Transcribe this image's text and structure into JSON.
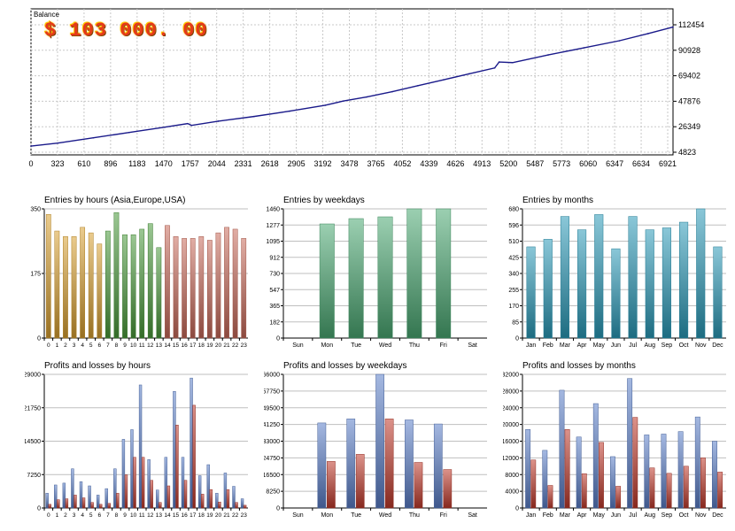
{
  "balance": {
    "title": "Balance",
    "amount": "$ 103 000. 00",
    "x_ticks": [
      "0",
      "323",
      "610",
      "896",
      "1183",
      "1470",
      "1757",
      "2044",
      "2331",
      "2618",
      "2905",
      "3192",
      "3478",
      "3765",
      "4052",
      "4339",
      "4626",
      "4913",
      "5200",
      "5487",
      "5773",
      "6060",
      "6347",
      "6634",
      "6921"
    ],
    "y_ticks": [
      "112454",
      "90928",
      "69402",
      "47876",
      "26349",
      "4823"
    ]
  },
  "colors": {
    "balance_line": "#1a1a8a",
    "asia": "#d9a030",
    "europe": "#4a9a3a",
    "usa": "#c86a5a",
    "weekday_entries": "#4aa872",
    "month_entries": "#2a9ab8",
    "profit": "#5a7ec8",
    "loss": "#c0392b"
  },
  "chart_data": [
    {
      "type": "line",
      "title": "Balance",
      "ylim": [
        4823,
        112454
      ],
      "xlim": [
        0,
        7200
      ],
      "x": [
        0,
        300,
        700,
        1100,
        1500,
        1757,
        1800,
        2100,
        2500,
        2900,
        3300,
        3500,
        3765,
        4052,
        4339,
        4626,
        4913,
        5200,
        5250,
        5400,
        5800,
        6200,
        6600,
        6921,
        7200
      ],
      "y": [
        10000,
        12500,
        17000,
        21500,
        26000,
        29000,
        27500,
        31000,
        35000,
        39500,
        44500,
        48000,
        51500,
        56000,
        61000,
        66000,
        71000,
        76000,
        81000,
        80500,
        87000,
        93000,
        99000,
        105000,
        110500
      ]
    },
    {
      "type": "bar",
      "title": "Entries by hours (Asia,Europe,USA)",
      "categories": [
        "0",
        "1",
        "2",
        "3",
        "4",
        "5",
        "6",
        "7",
        "8",
        "9",
        "10",
        "11",
        "12",
        "13",
        "14",
        "15",
        "16",
        "17",
        "18",
        "19",
        "20",
        "21",
        "22",
        "23"
      ],
      "values": [
        335,
        290,
        275,
        275,
        300,
        285,
        255,
        290,
        340,
        280,
        280,
        295,
        310,
        245,
        305,
        275,
        270,
        270,
        275,
        265,
        285,
        300,
        295,
        270
      ],
      "ylim": [
        0,
        350
      ],
      "y_ticks": [
        "0",
        "175",
        "350"
      ]
    },
    {
      "type": "bar",
      "title": "Entries by weekdays",
      "categories": [
        "Sun",
        "Mon",
        "Tue",
        "Wed",
        "Thu",
        "Fri",
        "Sat"
      ],
      "values": [
        0,
        1290,
        1350,
        1370,
        1460,
        1460,
        0
      ],
      "ylim": [
        0,
        1460
      ],
      "y_ticks": [
        "0",
        "182",
        "365",
        "547",
        "730",
        "912",
        "1095",
        "1277",
        "1460"
      ]
    },
    {
      "type": "bar",
      "title": "Entries by months",
      "categories": [
        "Jan",
        "Feb",
        "Mar",
        "Apr",
        "May",
        "Jun",
        "Jul",
        "Aug",
        "Sep",
        "Oct",
        "Nov",
        "Dec"
      ],
      "values": [
        480,
        520,
        640,
        570,
        650,
        470,
        640,
        570,
        580,
        610,
        680,
        480
      ],
      "ylim": [
        0,
        680
      ],
      "y_ticks": [
        "0",
        "85",
        "170",
        "255",
        "340",
        "425",
        "510",
        "596",
        "680"
      ]
    },
    {
      "type": "bar",
      "title": "Profits and losses by hours",
      "categories": [
        "0",
        "1",
        "2",
        "3",
        "4",
        "5",
        "6",
        "7",
        "8",
        "9",
        "10",
        "11",
        "12",
        "13",
        "14",
        "15",
        "16",
        "17",
        "18",
        "19",
        "20",
        "21",
        "22",
        "23"
      ],
      "series": [
        {
          "values": [
            3200,
            5000,
            5400,
            8500,
            5700,
            4800,
            2800,
            4200,
            8500,
            14900,
            17000,
            26700,
            10500,
            3900,
            11000,
            25300,
            11000,
            28200,
            7000,
            9400,
            3200,
            7600,
            4700,
            2000
          ]
        },
        {
          "values": [
            800,
            1800,
            2000,
            2800,
            2200,
            1200,
            800,
            1000,
            3200,
            7200,
            11000,
            11000,
            6000,
            1200,
            4800,
            18000,
            6000,
            22300,
            3000,
            4000,
            1300,
            4000,
            1200,
            600
          ]
        }
      ],
      "ylim": [
        0,
        29000
      ],
      "y_ticks": [
        "0",
        "7250",
        "14500",
        "21750",
        "29000"
      ]
    },
    {
      "type": "bar",
      "title": "Profits and losses by weekdays",
      "categories": [
        "Sun",
        "Mon",
        "Tue",
        "Wed",
        "Thu",
        "Fri",
        "Sat"
      ],
      "series": [
        {
          "values": [
            0,
            42000,
            44000,
            66000,
            43500,
            41500,
            0
          ]
        },
        {
          "values": [
            0,
            23000,
            26500,
            44000,
            22500,
            19000,
            0
          ]
        }
      ],
      "ylim": [
        0,
        66000
      ],
      "y_ticks": [
        "0",
        "8250",
        "16500",
        "24750",
        "33000",
        "41250",
        "49500",
        "57750",
        "66000"
      ]
    },
    {
      "type": "bar",
      "title": "Profits and losses by months",
      "categories": [
        "Jan",
        "Feb",
        "Mar",
        "Apr",
        "May",
        "Jun",
        "Jul",
        "Aug",
        "Sep",
        "Oct",
        "Nov",
        "Dec"
      ],
      "series": [
        {
          "values": [
            18800,
            13800,
            28200,
            17000,
            25000,
            12300,
            31000,
            17500,
            17700,
            18300,
            21800,
            16000
          ]
        },
        {
          "values": [
            11500,
            5400,
            18800,
            8200,
            15700,
            5200,
            21700,
            9600,
            8300,
            10000,
            12000,
            8600
          ]
        }
      ],
      "ylim": [
        0,
        32000
      ],
      "y_ticks": [
        "0",
        "4000",
        "8000",
        "12000",
        "16000",
        "20000",
        "24000",
        "28000",
        "32000"
      ]
    }
  ]
}
